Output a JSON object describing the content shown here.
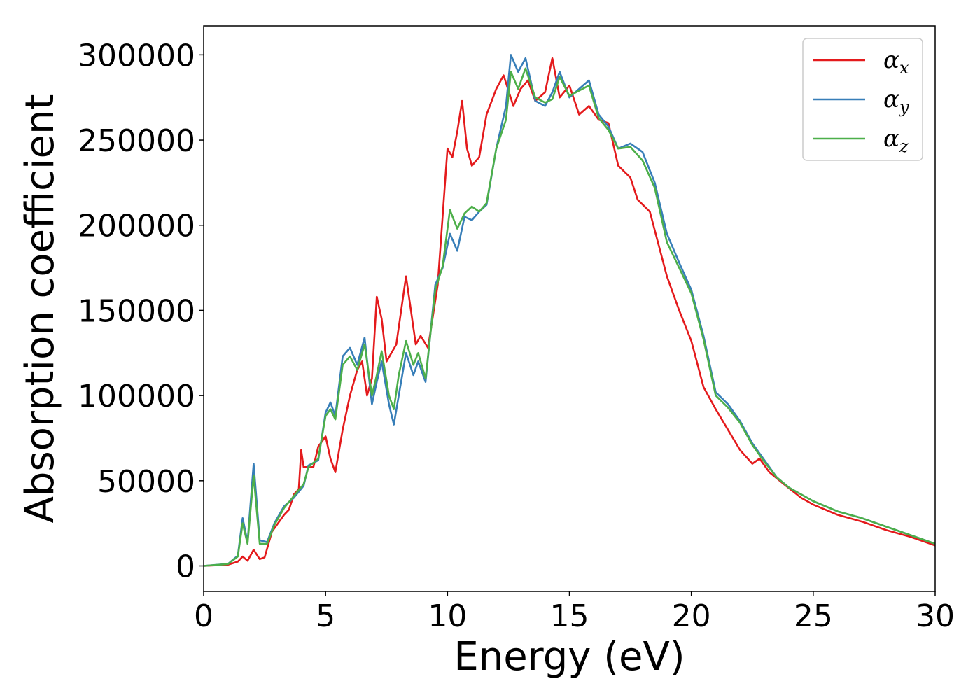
{
  "chart_data": {
    "type": "line",
    "title": "",
    "xlabel": "Energy (eV)",
    "ylabel": "Absorption coefficient",
    "xlim": [
      0,
      30
    ],
    "ylim": [
      -15000,
      317000
    ],
    "grid": false,
    "legend_position": "top-right",
    "xticks": [
      0,
      5,
      10,
      15,
      20,
      25,
      30
    ],
    "yticks": [
      0,
      50000,
      100000,
      150000,
      200000,
      250000,
      300000
    ],
    "xtick_labels": [
      "0",
      "5",
      "10",
      "15",
      "20",
      "25",
      "30"
    ],
    "ytick_labels": [
      "0",
      "50000",
      "100000",
      "150000",
      "200000",
      "250000",
      "300000"
    ],
    "series": [
      {
        "name": "α_x",
        "legend_symbol": "α",
        "legend_sub": "x",
        "color": "#e41a1c",
        "points": [
          [
            0,
            0
          ],
          [
            1,
            700
          ],
          [
            1.4,
            2500
          ],
          [
            1.6,
            5500
          ],
          [
            1.8,
            3000
          ],
          [
            2.05,
            9500
          ],
          [
            2.3,
            4000
          ],
          [
            2.5,
            5000
          ],
          [
            2.8,
            20000
          ],
          [
            3.3,
            30000
          ],
          [
            3.5,
            33000
          ],
          [
            3.7,
            42000
          ],
          [
            3.9,
            45000
          ],
          [
            4.0,
            68000
          ],
          [
            4.1,
            58000
          ],
          [
            4.5,
            58000
          ],
          [
            4.7,
            70000
          ],
          [
            5.0,
            76000
          ],
          [
            5.2,
            63000
          ],
          [
            5.4,
            55000
          ],
          [
            5.7,
            80000
          ],
          [
            6.0,
            100000
          ],
          [
            6.3,
            115000
          ],
          [
            6.5,
            120000
          ],
          [
            6.7,
            100000
          ],
          [
            6.9,
            110000
          ],
          [
            7.1,
            158000
          ],
          [
            7.3,
            145000
          ],
          [
            7.5,
            120000
          ],
          [
            7.9,
            130000
          ],
          [
            8.3,
            170000
          ],
          [
            8.5,
            150000
          ],
          [
            8.7,
            130000
          ],
          [
            8.9,
            135000
          ],
          [
            9.2,
            128000
          ],
          [
            9.6,
            165000
          ],
          [
            10.0,
            245000
          ],
          [
            10.2,
            240000
          ],
          [
            10.4,
            255000
          ],
          [
            10.6,
            273000
          ],
          [
            10.8,
            245000
          ],
          [
            11.0,
            235000
          ],
          [
            11.3,
            240000
          ],
          [
            11.6,
            265000
          ],
          [
            12.0,
            280000
          ],
          [
            12.3,
            288000
          ],
          [
            12.7,
            270000
          ],
          [
            13.0,
            280000
          ],
          [
            13.3,
            285000
          ],
          [
            13.6,
            273000
          ],
          [
            14.0,
            278000
          ],
          [
            14.3,
            298000
          ],
          [
            14.6,
            275000
          ],
          [
            15.0,
            282000
          ],
          [
            15.4,
            265000
          ],
          [
            15.8,
            270000
          ],
          [
            16.2,
            262000
          ],
          [
            16.6,
            260000
          ],
          [
            17.0,
            235000
          ],
          [
            17.5,
            228000
          ],
          [
            17.8,
            215000
          ],
          [
            18.3,
            208000
          ],
          [
            19.0,
            170000
          ],
          [
            19.5,
            150000
          ],
          [
            20.0,
            132000
          ],
          [
            20.5,
            105000
          ],
          [
            21.0,
            92000
          ],
          [
            21.5,
            80000
          ],
          [
            22.0,
            68000
          ],
          [
            22.5,
            60000
          ],
          [
            22.8,
            63000
          ],
          [
            23.2,
            55000
          ],
          [
            23.8,
            48000
          ],
          [
            24.5,
            40000
          ],
          [
            25.0,
            36000
          ],
          [
            26.0,
            30000
          ],
          [
            27.0,
            26000
          ],
          [
            28.0,
            21000
          ],
          [
            29.0,
            17000
          ],
          [
            30.0,
            12000
          ]
        ]
      },
      {
        "name": "α_y",
        "legend_symbol": "α",
        "legend_sub": "y",
        "color": "#377eb8",
        "points": [
          [
            0,
            0
          ],
          [
            1,
            1200
          ],
          [
            1.4,
            6000
          ],
          [
            1.6,
            28000
          ],
          [
            1.8,
            14000
          ],
          [
            2.05,
            60000
          ],
          [
            2.3,
            15000
          ],
          [
            2.6,
            14000
          ],
          [
            2.9,
            25000
          ],
          [
            3.3,
            35000
          ],
          [
            3.7,
            40000
          ],
          [
            4.1,
            47000
          ],
          [
            4.3,
            59000
          ],
          [
            4.7,
            62000
          ],
          [
            5.0,
            90000
          ],
          [
            5.2,
            96000
          ],
          [
            5.4,
            88000
          ],
          [
            5.7,
            123000
          ],
          [
            6.0,
            128000
          ],
          [
            6.3,
            118000
          ],
          [
            6.6,
            134000
          ],
          [
            6.9,
            95000
          ],
          [
            7.1,
            108000
          ],
          [
            7.3,
            120000
          ],
          [
            7.6,
            95000
          ],
          [
            7.8,
            83000
          ],
          [
            8.0,
            100000
          ],
          [
            8.3,
            125000
          ],
          [
            8.6,
            112000
          ],
          [
            8.8,
            120000
          ],
          [
            9.1,
            108000
          ],
          [
            9.5,
            165000
          ],
          [
            9.8,
            175000
          ],
          [
            10.1,
            195000
          ],
          [
            10.4,
            185000
          ],
          [
            10.7,
            205000
          ],
          [
            11.0,
            203000
          ],
          [
            11.3,
            208000
          ],
          [
            11.6,
            212000
          ],
          [
            12.0,
            245000
          ],
          [
            12.4,
            270000
          ],
          [
            12.6,
            300000
          ],
          [
            12.9,
            290000
          ],
          [
            13.2,
            298000
          ],
          [
            13.6,
            273000
          ],
          [
            14.0,
            270000
          ],
          [
            14.3,
            278000
          ],
          [
            14.6,
            290000
          ],
          [
            15.0,
            275000
          ],
          [
            15.4,
            280000
          ],
          [
            15.8,
            285000
          ],
          [
            16.2,
            265000
          ],
          [
            16.6,
            258000
          ],
          [
            17.0,
            245000
          ],
          [
            17.5,
            248000
          ],
          [
            18.0,
            243000
          ],
          [
            18.5,
            225000
          ],
          [
            19.0,
            195000
          ],
          [
            19.5,
            178000
          ],
          [
            20.0,
            162000
          ],
          [
            20.5,
            135000
          ],
          [
            21.0,
            102000
          ],
          [
            21.5,
            95000
          ],
          [
            22.0,
            85000
          ],
          [
            22.5,
            72000
          ],
          [
            23.0,
            62000
          ],
          [
            23.5,
            52000
          ],
          [
            24.0,
            46000
          ],
          [
            24.5,
            42000
          ],
          [
            25.0,
            38000
          ],
          [
            26.0,
            32000
          ],
          [
            27.0,
            28000
          ],
          [
            28.0,
            23000
          ],
          [
            29.0,
            18000
          ],
          [
            30.0,
            13000
          ]
        ]
      },
      {
        "name": "α_z",
        "legend_symbol": "α",
        "legend_sub": "z",
        "color": "#4daf4a",
        "points": [
          [
            0,
            0
          ],
          [
            1,
            1100
          ],
          [
            1.4,
            5500
          ],
          [
            1.6,
            25000
          ],
          [
            1.8,
            13000
          ],
          [
            2.05,
            53000
          ],
          [
            2.3,
            13000
          ],
          [
            2.6,
            13000
          ],
          [
            2.9,
            24000
          ],
          [
            3.3,
            34000
          ],
          [
            3.7,
            41000
          ],
          [
            4.1,
            48000
          ],
          [
            4.3,
            58000
          ],
          [
            4.7,
            63000
          ],
          [
            5.0,
            88000
          ],
          [
            5.2,
            92000
          ],
          [
            5.4,
            86000
          ],
          [
            5.7,
            118000
          ],
          [
            6.0,
            123000
          ],
          [
            6.3,
            115000
          ],
          [
            6.6,
            130000
          ],
          [
            6.9,
            100000
          ],
          [
            7.1,
            112000
          ],
          [
            7.3,
            126000
          ],
          [
            7.6,
            100000
          ],
          [
            7.8,
            92000
          ],
          [
            8.0,
            112000
          ],
          [
            8.3,
            132000
          ],
          [
            8.6,
            118000
          ],
          [
            8.8,
            125000
          ],
          [
            9.1,
            110000
          ],
          [
            9.5,
            162000
          ],
          [
            9.8,
            176000
          ],
          [
            10.1,
            209000
          ],
          [
            10.4,
            198000
          ],
          [
            10.7,
            207000
          ],
          [
            11.0,
            211000
          ],
          [
            11.3,
            208000
          ],
          [
            11.6,
            213000
          ],
          [
            12.0,
            245000
          ],
          [
            12.4,
            262000
          ],
          [
            12.6,
            290000
          ],
          [
            12.9,
            280000
          ],
          [
            13.2,
            292000
          ],
          [
            13.6,
            275000
          ],
          [
            14.0,
            272000
          ],
          [
            14.3,
            274000
          ],
          [
            14.6,
            287000
          ],
          [
            15.0,
            276000
          ],
          [
            15.4,
            279000
          ],
          [
            15.8,
            282000
          ],
          [
            16.2,
            263000
          ],
          [
            16.6,
            256000
          ],
          [
            17.0,
            245000
          ],
          [
            17.5,
            246000
          ],
          [
            18.0,
            238000
          ],
          [
            18.5,
            222000
          ],
          [
            19.0,
            190000
          ],
          [
            19.5,
            175000
          ],
          [
            20.0,
            160000
          ],
          [
            20.5,
            133000
          ],
          [
            21.0,
            100000
          ],
          [
            21.5,
            93000
          ],
          [
            22.0,
            84000
          ],
          [
            22.5,
            71000
          ],
          [
            23.0,
            61000
          ],
          [
            23.5,
            52000
          ],
          [
            24.0,
            46000
          ],
          [
            24.5,
            42000
          ],
          [
            25.0,
            38000
          ],
          [
            26.0,
            32000
          ],
          [
            27.0,
            28000
          ],
          [
            28.0,
            23000
          ],
          [
            29.0,
            18000
          ],
          [
            30.0,
            13000
          ]
        ]
      }
    ]
  }
}
